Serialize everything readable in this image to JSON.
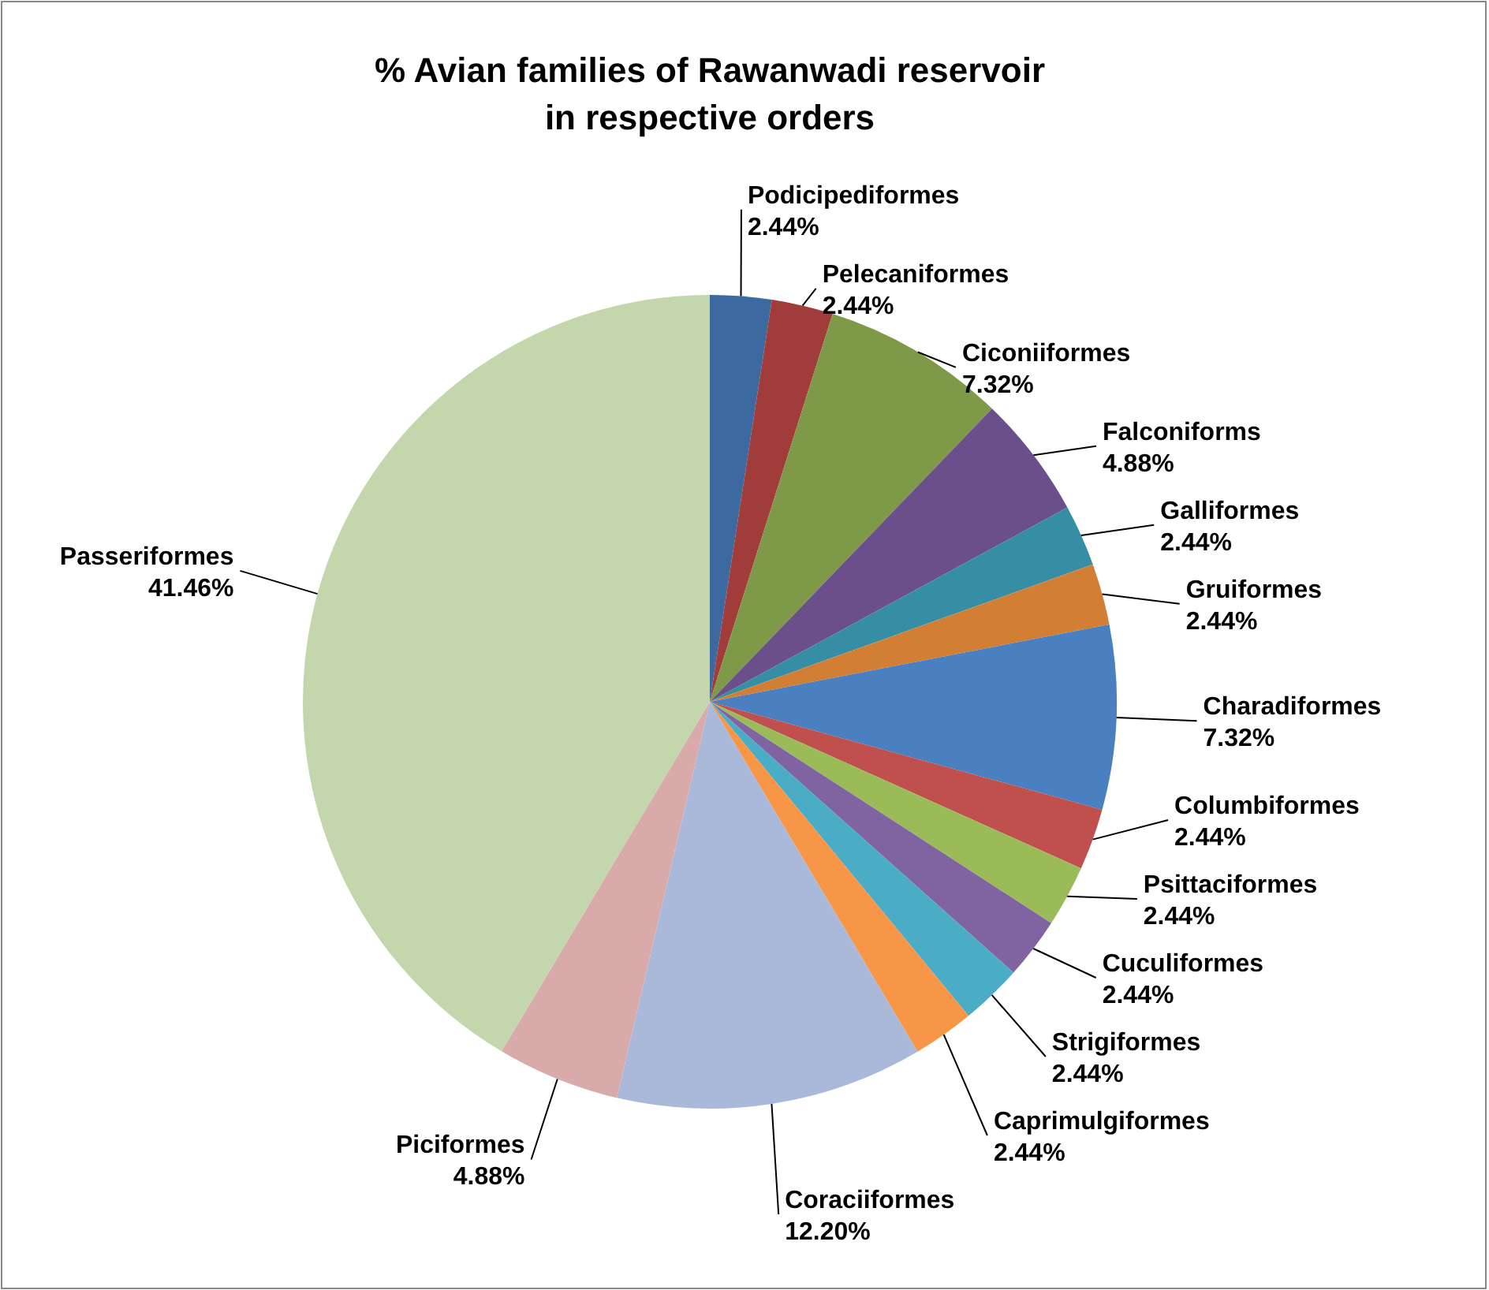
{
  "chart_data": {
    "type": "pie",
    "title": "% Avian families of Rawanwadi reservoir in respective orders",
    "categories": [
      "Podicipediformes",
      "Pelecaniformes",
      "Ciconiiformes",
      "Falconiforms",
      "Galliformes",
      "Gruiformes",
      "Charadiformes",
      "Columbiformes",
      "Psittaciformes",
      "Cuculiformes",
      "Strigiformes",
      "Caprimulgiformes",
      "Coraciiformes",
      "Piciformes",
      "Passeriformes"
    ],
    "values": [
      2.44,
      2.44,
      7.32,
      4.88,
      2.44,
      2.44,
      7.32,
      2.44,
      2.44,
      2.44,
      2.44,
      2.44,
      12.2,
      4.88,
      41.46
    ],
    "value_labels": [
      "2.44%",
      "2.44%",
      "7.32%",
      "4.88%",
      "2.44%",
      "2.44%",
      "7.32%",
      "2.44%",
      "2.44%",
      "2.44%",
      "2.44%",
      "2.44%",
      "12.20%",
      "4.88%",
      "41.46%"
    ],
    "colors": [
      "#3c6aa0",
      "#a03c3a",
      "#7e9a48",
      "#6a4f8a",
      "#358ea4",
      "#d27f35",
      "#4a7fc0",
      "#c0504d",
      "#9bbb59",
      "#8064a2",
      "#4bacc6",
      "#f79646",
      "#aab9d9",
      "#d9aaaa",
      "#c4d6ab"
    ]
  }
}
